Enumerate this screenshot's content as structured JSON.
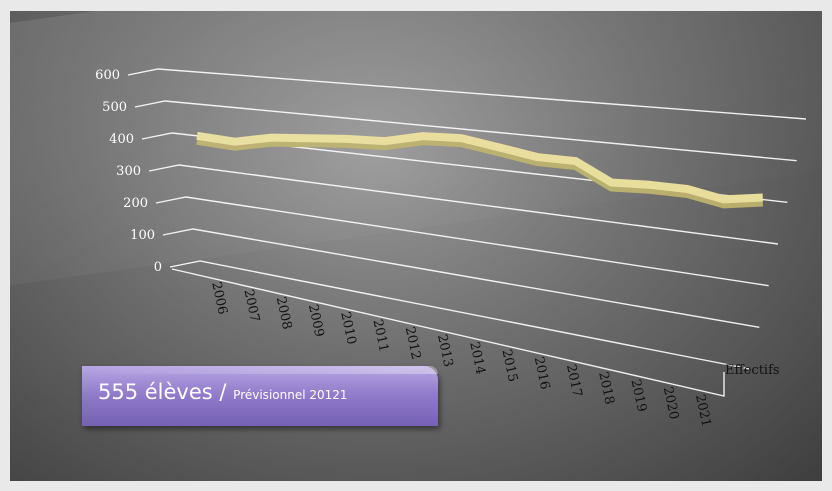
{
  "banner": {
    "main": "555 élèves",
    "separator": " / ",
    "sub": "Prévisionnel 20121",
    "color": "#8f79c9"
  },
  "chart_data": {
    "type": "line",
    "style": "3d-perspective",
    "categories": [
      "2006",
      "2007",
      "2008",
      "2009",
      "2010",
      "2011",
      "2012",
      "2013",
      "2014",
      "2015",
      "2016",
      "2017",
      "2018",
      "2019",
      "2020",
      "2021"
    ],
    "series": [
      {
        "name": "Effectifs",
        "color": "#e8dd9a",
        "values": [
          400,
          395,
          420,
          430,
          440,
          445,
          470,
          475,
          460,
          445,
          445,
          400,
          405,
          405,
          390,
          405
        ]
      }
    ],
    "yticks": [
      "0",
      "100",
      "200",
      "300",
      "400",
      "500",
      "600"
    ],
    "ylim": [
      0,
      600
    ],
    "grid": true
  }
}
